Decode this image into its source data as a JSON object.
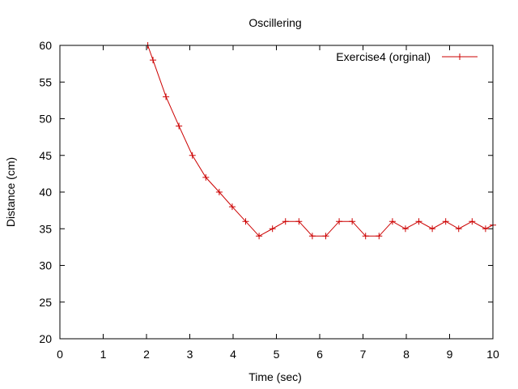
{
  "chart_data": {
    "type": "line",
    "title": "Oscillering",
    "xlabel": "Time (sec)",
    "ylabel": "Distance (cm)",
    "xlim": [
      0,
      10
    ],
    "ylim": [
      20,
      60
    ],
    "x_ticks": [
      0,
      1,
      2,
      3,
      4,
      5,
      6,
      7,
      8,
      9,
      10
    ],
    "y_ticks": [
      20,
      25,
      30,
      35,
      40,
      45,
      50,
      55,
      60
    ],
    "grid": false,
    "legend_position": "top-right",
    "series": [
      {
        "name": "Exercise4 (orginal)",
        "color": "#cc0000",
        "marker": "plus",
        "x": [
          2.03,
          2.15,
          2.45,
          2.75,
          3.06,
          3.37,
          3.68,
          3.98,
          4.29,
          4.6,
          4.91,
          5.21,
          5.52,
          5.83,
          6.14,
          6.45,
          6.75,
          7.06,
          7.37,
          7.68,
          7.98,
          8.29,
          8.6,
          8.91,
          9.21,
          9.52,
          9.83,
          10.0
        ],
        "y": [
          60,
          58,
          53,
          49,
          45,
          42,
          40,
          38,
          36,
          34,
          35,
          36,
          36,
          34,
          34,
          36,
          36,
          34,
          34,
          36,
          35,
          36,
          35,
          36,
          35,
          36,
          35,
          35.5
        ]
      }
    ]
  }
}
